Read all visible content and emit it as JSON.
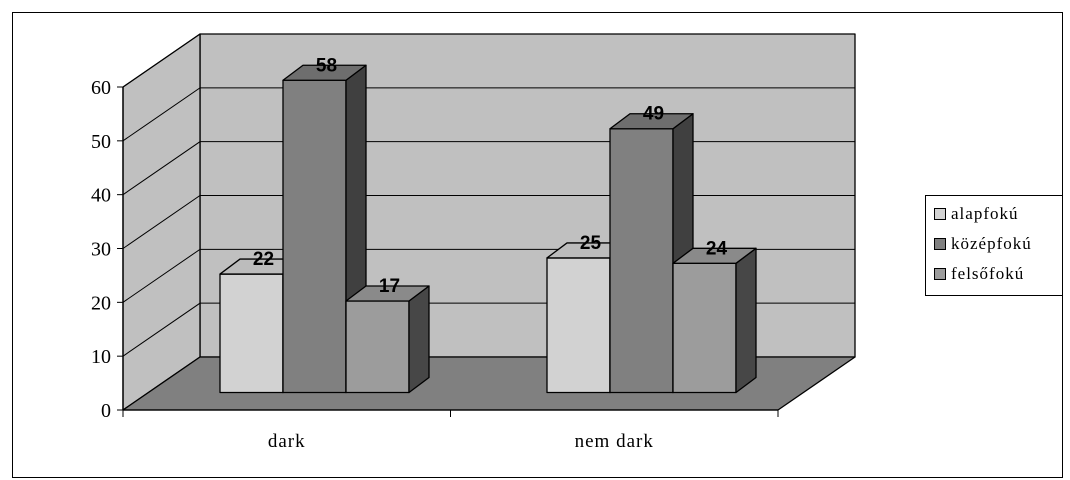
{
  "chart_data": {
    "type": "bar",
    "style": "3d-clustered-column",
    "categories": [
      "dark",
      "nem dark"
    ],
    "series": [
      {
        "name": "alapfokú",
        "values": [
          22,
          25
        ],
        "color": "#d2d2d2",
        "side_color": "#6e6e6e",
        "top_color": "#bcbcbc"
      },
      {
        "name": "középfokú",
        "values": [
          58,
          49
        ],
        "color": "#808080",
        "side_color": "#404040",
        "top_color": "#6e6e6e"
      },
      {
        "name": "felsőfokú",
        "values": [
          17,
          24
        ],
        "color": "#9c9c9c",
        "side_color": "#474747",
        "top_color": "#8a8a8a"
      }
    ],
    "yticks": [
      "0",
      "10",
      "20",
      "30",
      "40",
      "50",
      "60"
    ],
    "ylim": [
      0,
      60
    ],
    "grid": true,
    "data_labels": true,
    "legend_position": "right",
    "wall_color": "#c0c0c0",
    "floor_color": "#808080"
  }
}
